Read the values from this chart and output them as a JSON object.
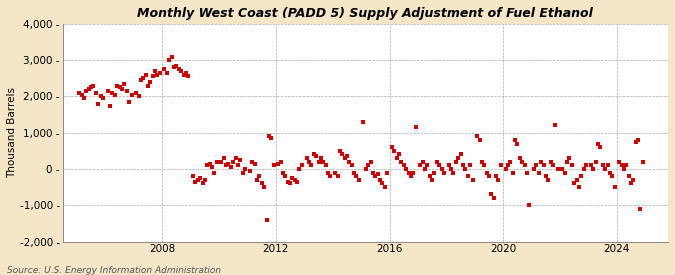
{
  "title": "Monthly West Coast (PADD 5) Supply Adjustment of Fuel Ethanol",
  "ylabel": "Thousand Barrels",
  "source": "Source: U.S. Energy Information Administration",
  "bg_color": "#f5e6c8",
  "plot_bg_color": "#ffffff",
  "marker_color": "#cc0000",
  "ylim": [
    -2000,
    4000
  ],
  "yticks": [
    -2000,
    -1000,
    0,
    1000,
    2000,
    3000,
    4000
  ],
  "xlim_start": 2004.5,
  "xlim_end": 2025.8,
  "xticks": [
    2008,
    2012,
    2016,
    2020,
    2024
  ],
  "data": [
    [
      2005.08,
      2100
    ],
    [
      2005.17,
      2050
    ],
    [
      2005.25,
      1950
    ],
    [
      2005.33,
      2150
    ],
    [
      2005.42,
      2200
    ],
    [
      2005.5,
      2250
    ],
    [
      2005.58,
      2300
    ],
    [
      2005.67,
      2100
    ],
    [
      2005.75,
      1800
    ],
    [
      2005.83,
      2000
    ],
    [
      2005.92,
      1950
    ],
    [
      2006.08,
      2150
    ],
    [
      2006.17,
      1750
    ],
    [
      2006.25,
      2100
    ],
    [
      2006.33,
      2050
    ],
    [
      2006.42,
      2300
    ],
    [
      2006.5,
      2250
    ],
    [
      2006.58,
      2200
    ],
    [
      2006.67,
      2350
    ],
    [
      2006.75,
      2150
    ],
    [
      2006.83,
      1850
    ],
    [
      2006.92,
      2050
    ],
    [
      2007.08,
      2100
    ],
    [
      2007.17,
      2000
    ],
    [
      2007.25,
      2450
    ],
    [
      2007.33,
      2500
    ],
    [
      2007.42,
      2600
    ],
    [
      2007.5,
      2300
    ],
    [
      2007.58,
      2400
    ],
    [
      2007.67,
      2550
    ],
    [
      2007.75,
      2700
    ],
    [
      2007.83,
      2600
    ],
    [
      2007.92,
      2650
    ],
    [
      2008.08,
      2750
    ],
    [
      2008.17,
      2650
    ],
    [
      2008.25,
      3000
    ],
    [
      2008.33,
      3100
    ],
    [
      2008.42,
      2800
    ],
    [
      2008.5,
      2850
    ],
    [
      2008.58,
      2750
    ],
    [
      2008.67,
      2700
    ],
    [
      2008.75,
      2600
    ],
    [
      2008.83,
      2650
    ],
    [
      2008.92,
      2550
    ],
    [
      2009.08,
      -200
    ],
    [
      2009.17,
      -350
    ],
    [
      2009.25,
      -300
    ],
    [
      2009.33,
      -250
    ],
    [
      2009.42,
      -400
    ],
    [
      2009.5,
      -300
    ],
    [
      2009.58,
      100
    ],
    [
      2009.67,
      150
    ],
    [
      2009.75,
      50
    ],
    [
      2009.83,
      -100
    ],
    [
      2009.92,
      200
    ],
    [
      2010.08,
      200
    ],
    [
      2010.17,
      300
    ],
    [
      2010.25,
      100
    ],
    [
      2010.33,
      150
    ],
    [
      2010.42,
      50
    ],
    [
      2010.5,
      200
    ],
    [
      2010.58,
      300
    ],
    [
      2010.67,
      100
    ],
    [
      2010.75,
      250
    ],
    [
      2010.83,
      -100
    ],
    [
      2010.92,
      0
    ],
    [
      2011.08,
      -50
    ],
    [
      2011.17,
      200
    ],
    [
      2011.25,
      150
    ],
    [
      2011.33,
      -300
    ],
    [
      2011.42,
      -200
    ],
    [
      2011.5,
      -400
    ],
    [
      2011.58,
      -500
    ],
    [
      2011.67,
      -1400
    ],
    [
      2011.75,
      900
    ],
    [
      2011.83,
      850
    ],
    [
      2011.92,
      100
    ],
    [
      2012.08,
      150
    ],
    [
      2012.17,
      200
    ],
    [
      2012.25,
      -100
    ],
    [
      2012.33,
      -200
    ],
    [
      2012.42,
      -350
    ],
    [
      2012.5,
      -400
    ],
    [
      2012.58,
      -250
    ],
    [
      2012.67,
      -300
    ],
    [
      2012.75,
      -350
    ],
    [
      2012.83,
      0
    ],
    [
      2012.92,
      100
    ],
    [
      2013.08,
      300
    ],
    [
      2013.17,
      200
    ],
    [
      2013.25,
      100
    ],
    [
      2013.33,
      400
    ],
    [
      2013.42,
      350
    ],
    [
      2013.5,
      200
    ],
    [
      2013.58,
      300
    ],
    [
      2013.67,
      200
    ],
    [
      2013.75,
      100
    ],
    [
      2013.83,
      -100
    ],
    [
      2013.92,
      -200
    ],
    [
      2014.08,
      -100
    ],
    [
      2014.17,
      -200
    ],
    [
      2014.25,
      500
    ],
    [
      2014.33,
      400
    ],
    [
      2014.42,
      300
    ],
    [
      2014.5,
      350
    ],
    [
      2014.58,
      200
    ],
    [
      2014.67,
      100
    ],
    [
      2014.75,
      -100
    ],
    [
      2014.83,
      -200
    ],
    [
      2014.92,
      -300
    ],
    [
      2015.08,
      1300
    ],
    [
      2015.17,
      0
    ],
    [
      2015.25,
      100
    ],
    [
      2015.33,
      200
    ],
    [
      2015.42,
      -100
    ],
    [
      2015.5,
      -200
    ],
    [
      2015.58,
      -150
    ],
    [
      2015.67,
      -300
    ],
    [
      2015.75,
      -400
    ],
    [
      2015.83,
      -500
    ],
    [
      2015.92,
      -100
    ],
    [
      2016.08,
      600
    ],
    [
      2016.17,
      500
    ],
    [
      2016.25,
      300
    ],
    [
      2016.33,
      400
    ],
    [
      2016.42,
      200
    ],
    [
      2016.5,
      100
    ],
    [
      2016.58,
      0
    ],
    [
      2016.67,
      -100
    ],
    [
      2016.75,
      -200
    ],
    [
      2016.83,
      -100
    ],
    [
      2016.92,
      1150
    ],
    [
      2017.08,
      100
    ],
    [
      2017.17,
      200
    ],
    [
      2017.25,
      0
    ],
    [
      2017.33,
      100
    ],
    [
      2017.42,
      -200
    ],
    [
      2017.5,
      -300
    ],
    [
      2017.58,
      -100
    ],
    [
      2017.67,
      200
    ],
    [
      2017.75,
      100
    ],
    [
      2017.83,
      0
    ],
    [
      2017.92,
      -100
    ],
    [
      2018.08,
      100
    ],
    [
      2018.17,
      0
    ],
    [
      2018.25,
      -100
    ],
    [
      2018.33,
      200
    ],
    [
      2018.42,
      300
    ],
    [
      2018.5,
      400
    ],
    [
      2018.58,
      100
    ],
    [
      2018.67,
      0
    ],
    [
      2018.75,
      -200
    ],
    [
      2018.83,
      100
    ],
    [
      2018.92,
      -300
    ],
    [
      2019.08,
      900
    ],
    [
      2019.17,
      800
    ],
    [
      2019.25,
      200
    ],
    [
      2019.33,
      100
    ],
    [
      2019.42,
      -100
    ],
    [
      2019.5,
      -200
    ],
    [
      2019.58,
      -700
    ],
    [
      2019.67,
      -800
    ],
    [
      2019.75,
      -200
    ],
    [
      2019.83,
      -300
    ],
    [
      2019.92,
      100
    ],
    [
      2020.08,
      0
    ],
    [
      2020.17,
      100
    ],
    [
      2020.25,
      200
    ],
    [
      2020.33,
      -100
    ],
    [
      2020.42,
      800
    ],
    [
      2020.5,
      700
    ],
    [
      2020.58,
      300
    ],
    [
      2020.67,
      200
    ],
    [
      2020.75,
      100
    ],
    [
      2020.83,
      -100
    ],
    [
      2020.92,
      -1000
    ],
    [
      2021.08,
      0
    ],
    [
      2021.17,
      100
    ],
    [
      2021.25,
      -100
    ],
    [
      2021.33,
      200
    ],
    [
      2021.42,
      100
    ],
    [
      2021.5,
      -200
    ],
    [
      2021.58,
      -300
    ],
    [
      2021.67,
      200
    ],
    [
      2021.75,
      100
    ],
    [
      2021.83,
      1200
    ],
    [
      2021.92,
      0
    ],
    [
      2022.08,
      0
    ],
    [
      2022.17,
      -100
    ],
    [
      2022.25,
      200
    ],
    [
      2022.33,
      300
    ],
    [
      2022.42,
      100
    ],
    [
      2022.5,
      -400
    ],
    [
      2022.58,
      -300
    ],
    [
      2022.67,
      -500
    ],
    [
      2022.75,
      -200
    ],
    [
      2022.83,
      0
    ],
    [
      2022.92,
      100
    ],
    [
      2023.08,
      100
    ],
    [
      2023.17,
      0
    ],
    [
      2023.25,
      200
    ],
    [
      2023.33,
      700
    ],
    [
      2023.42,
      600
    ],
    [
      2023.5,
      100
    ],
    [
      2023.58,
      0
    ],
    [
      2023.67,
      100
    ],
    [
      2023.75,
      -100
    ],
    [
      2023.83,
      -200
    ],
    [
      2023.92,
      -500
    ],
    [
      2024.08,
      200
    ],
    [
      2024.17,
      100
    ],
    [
      2024.25,
      0
    ],
    [
      2024.33,
      100
    ],
    [
      2024.42,
      -200
    ],
    [
      2024.5,
      -400
    ],
    [
      2024.58,
      -300
    ],
    [
      2024.67,
      750
    ],
    [
      2024.75,
      800
    ],
    [
      2024.83,
      -1100
    ],
    [
      2024.92,
      200
    ]
  ]
}
